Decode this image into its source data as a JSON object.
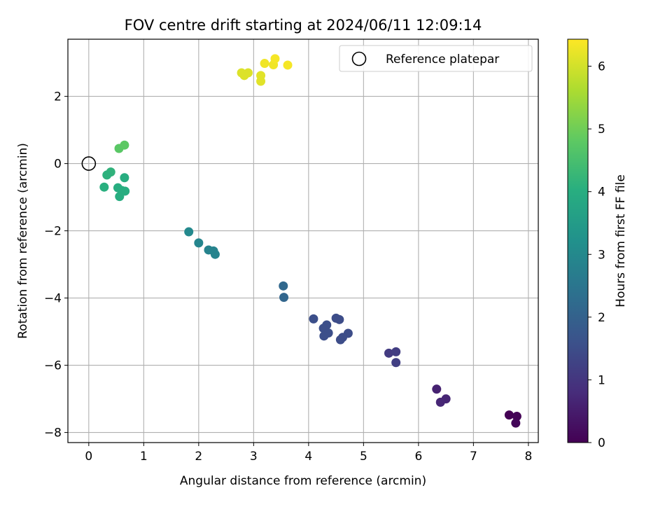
{
  "chart_data": {
    "type": "scatter",
    "title": "FOV centre drift starting at 2024/06/11 12:09:14",
    "xlabel": "Angular distance from reference (arcmin)",
    "ylabel": "Rotation from reference (arcmin)",
    "xlim": [
      -0.38,
      8.18
    ],
    "ylim": [
      -8.3,
      3.7
    ],
    "xticks": [
      0,
      1,
      2,
      3,
      4,
      5,
      6,
      7,
      8
    ],
    "yticks": [
      -8,
      -6,
      -4,
      -2,
      0,
      2
    ],
    "grid": true,
    "legend": {
      "placement": "top-right",
      "entries": [
        "Reference platepar"
      ]
    },
    "colorbar": {
      "label": "Hours from first FF file",
      "range": [
        0,
        6.43
      ],
      "ticks": [
        0,
        1,
        2,
        3,
        4,
        5,
        6
      ],
      "colormap": "viridis"
    },
    "reference_point": {
      "x": 0,
      "y": 0
    },
    "points": [
      {
        "x": 7.65,
        "y": -7.48,
        "c": 0.0
      },
      {
        "x": 7.79,
        "y": -7.52,
        "c": 0.05
      },
      {
        "x": 7.77,
        "y": -7.72,
        "c": 0.1
      },
      {
        "x": 6.33,
        "y": -6.71,
        "c": 0.6
      },
      {
        "x": 6.5,
        "y": -7.0,
        "c": 0.65
      },
      {
        "x": 6.4,
        "y": -7.1,
        "c": 0.7
      },
      {
        "x": 5.46,
        "y": -5.64,
        "c": 1.1
      },
      {
        "x": 5.59,
        "y": -5.6,
        "c": 1.15
      },
      {
        "x": 5.59,
        "y": -5.92,
        "c": 1.2
      },
      {
        "x": 4.09,
        "y": -4.62,
        "c": 1.55
      },
      {
        "x": 4.5,
        "y": -4.6,
        "c": 1.5
      },
      {
        "x": 4.56,
        "y": -4.64,
        "c": 1.5
      },
      {
        "x": 4.33,
        "y": -4.8,
        "c": 1.55
      },
      {
        "x": 4.27,
        "y": -4.9,
        "c": 1.55
      },
      {
        "x": 4.36,
        "y": -5.04,
        "c": 1.55
      },
      {
        "x": 4.28,
        "y": -5.13,
        "c": 1.55
      },
      {
        "x": 4.72,
        "y": -5.05,
        "c": 1.5
      },
      {
        "x": 4.62,
        "y": -5.17,
        "c": 1.5
      },
      {
        "x": 4.58,
        "y": -5.24,
        "c": 1.5
      },
      {
        "x": 3.54,
        "y": -3.64,
        "c": 2.15
      },
      {
        "x": 3.55,
        "y": -3.98,
        "c": 2.1
      },
      {
        "x": 1.82,
        "y": -2.03,
        "c": 3.0
      },
      {
        "x": 2.0,
        "y": -2.36,
        "c": 2.9
      },
      {
        "x": 2.18,
        "y": -2.57,
        "c": 2.85
      },
      {
        "x": 2.27,
        "y": -2.6,
        "c": 2.85
      },
      {
        "x": 2.3,
        "y": -2.7,
        "c": 2.85
      },
      {
        "x": 0.55,
        "y": 0.45,
        "c": 4.75
      },
      {
        "x": 0.65,
        "y": 0.55,
        "c": 4.8
      },
      {
        "x": 0.4,
        "y": -0.25,
        "c": 4.15
      },
      {
        "x": 0.33,
        "y": -0.34,
        "c": 4.1
      },
      {
        "x": 0.65,
        "y": -0.42,
        "c": 4.0
      },
      {
        "x": 0.28,
        "y": -0.7,
        "c": 4.05
      },
      {
        "x": 0.53,
        "y": -0.72,
        "c": 4.0
      },
      {
        "x": 0.6,
        "y": -0.8,
        "c": 4.0
      },
      {
        "x": 0.66,
        "y": -0.82,
        "c": 4.0
      },
      {
        "x": 0.56,
        "y": -0.98,
        "c": 4.0
      },
      {
        "x": 2.78,
        "y": 2.7,
        "c": 6.1
      },
      {
        "x": 2.83,
        "y": 2.62,
        "c": 6.1
      },
      {
        "x": 2.9,
        "y": 2.7,
        "c": 6.1
      },
      {
        "x": 3.13,
        "y": 2.62,
        "c": 6.15
      },
      {
        "x": 3.13,
        "y": 2.45,
        "c": 6.15
      },
      {
        "x": 3.2,
        "y": 2.98,
        "c": 6.3
      },
      {
        "x": 3.36,
        "y": 2.94,
        "c": 6.3
      },
      {
        "x": 3.39,
        "y": 3.12,
        "c": 6.35
      },
      {
        "x": 3.62,
        "y": 2.93,
        "c": 6.35
      }
    ]
  }
}
